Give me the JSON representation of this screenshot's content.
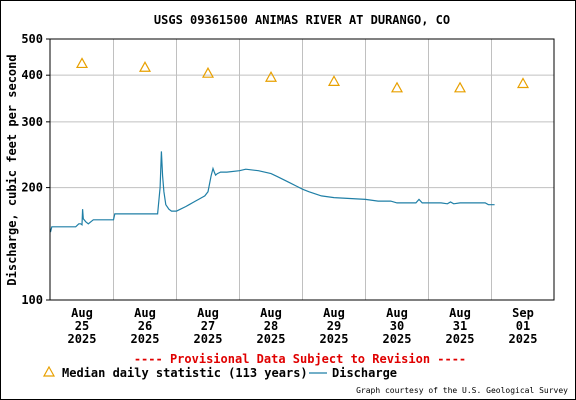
{
  "chart_data": {
    "type": "line",
    "title": "USGS 09361500 ANIMAS RIVER AT DURANGO, CO",
    "ylabel": "Discharge, cubic feet per second",
    "xlabel": "",
    "y_scale": "log",
    "ylim": [
      100,
      500
    ],
    "y_ticks": [
      {
        "value": 100,
        "label": "100"
      },
      {
        "value": 200,
        "label": "200"
      },
      {
        "value": 300,
        "label": "300"
      },
      {
        "value": 400,
        "label": "400"
      },
      {
        "value": 500,
        "label": "500"
      }
    ],
    "x_ticks": [
      {
        "month": "Aug",
        "day": "25",
        "year": "2025"
      },
      {
        "month": "Aug",
        "day": "26",
        "year": "2025"
      },
      {
        "month": "Aug",
        "day": "27",
        "year": "2025"
      },
      {
        "month": "Aug",
        "day": "28",
        "year": "2025"
      },
      {
        "month": "Aug",
        "day": "29",
        "year": "2025"
      },
      {
        "month": "Aug",
        "day": "30",
        "year": "2025"
      },
      {
        "month": "Aug",
        "day": "31",
        "year": "2025"
      },
      {
        "month": "Sep",
        "day": "01",
        "year": "2025"
      }
    ],
    "grid": true,
    "colors": {
      "discharge": "#1f7fa6",
      "median": "#e8a000",
      "provisional": "#e00000",
      "grid": "#c0c0c0"
    },
    "series": [
      {
        "name": "Median daily statistic (113 years)",
        "kind": "marker",
        "x": [
          0,
          1,
          2,
          3,
          4,
          5,
          6,
          7
        ],
        "values": [
          430,
          420,
          405,
          395,
          385,
          370,
          370,
          380
        ]
      },
      {
        "name": "Discharge",
        "kind": "line",
        "x": [
          -0.5,
          -0.48,
          -0.2,
          -0.1,
          -0.05,
          -0.02,
          0.0,
          0.01,
          0.02,
          0.06,
          0.1,
          0.18,
          0.5,
          0.52,
          1.0,
          1.1,
          1.2,
          1.24,
          1.26,
          1.28,
          1.3,
          1.33,
          1.38,
          1.42,
          1.5,
          1.65,
          1.7,
          1.75,
          1.8,
          1.85,
          1.9,
          1.95,
          2.0,
          2.05,
          2.08,
          2.1,
          2.12,
          2.15,
          2.2,
          2.3,
          2.5,
          2.6,
          2.8,
          3.0,
          3.1,
          3.2,
          3.3,
          3.4,
          3.5,
          3.6,
          3.8,
          4.0,
          4.5,
          4.7,
          4.9,
          5.0,
          5.3,
          5.35,
          5.4,
          5.7,
          5.8,
          5.85,
          5.9,
          6.0,
          6.4,
          6.45,
          6.5,
          6.55
        ],
        "values": [
          152,
          157,
          157,
          157,
          160,
          160,
          159,
          175,
          165,
          162,
          160,
          164,
          164,
          170,
          170,
          170,
          170,
          200,
          250,
          215,
          195,
          180,
          175,
          173,
          173,
          178,
          180,
          182,
          184,
          186,
          188,
          190,
          195,
          215,
          225,
          220,
          216,
          218,
          220,
          220,
          222,
          224,
          222,
          218,
          214,
          210,
          206,
          202,
          198,
          195,
          190,
          188,
          186,
          184,
          184,
          182,
          182,
          186,
          182,
          182,
          181,
          183,
          181,
          182,
          182,
          180,
          180,
          180
        ]
      }
    ]
  },
  "provisional_notice": "---- Provisional Data Subject to Revision ----",
  "legend": {
    "median_label": "Median daily statistic (113 years)",
    "discharge_label": "Discharge"
  },
  "credit": "Graph courtesy of the U.S. Geological Survey"
}
